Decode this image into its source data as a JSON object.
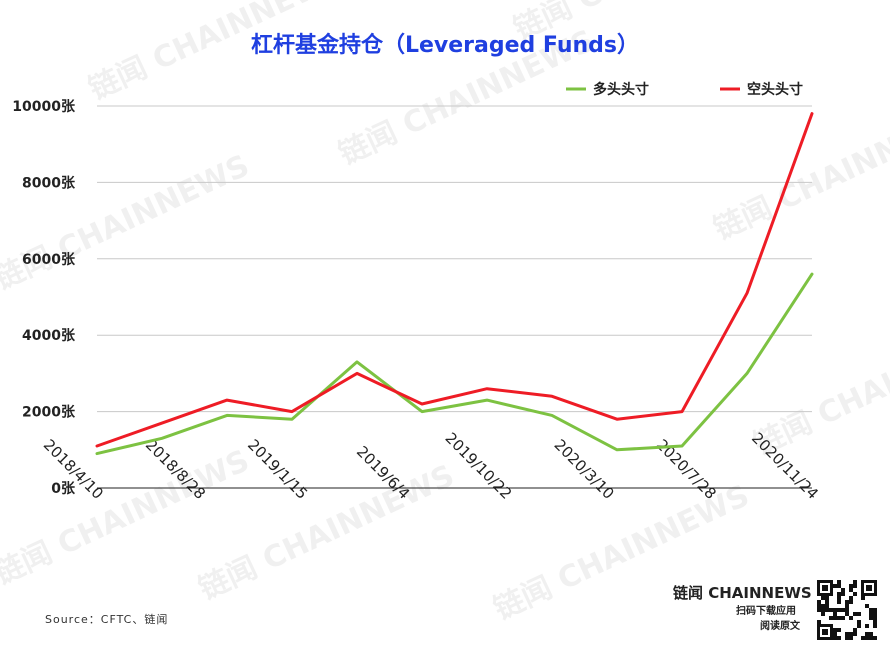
{
  "title": "杠杆基金持仓（Leveraged Funds）",
  "source": "Source：CFTC、链闻",
  "brand": {
    "name": "链闻 CHAINNEWS",
    "line1": "扫码下载应用",
    "line2": "阅读原文"
  },
  "watermark": "链闻 CHAINNEWS",
  "chart_data": {
    "type": "line",
    "title": "杠杆基金持仓（Leveraged Funds）",
    "xlabel": "",
    "ylabel": "",
    "ylim": [
      0,
      10000
    ],
    "y_ticks": [
      0,
      2000,
      4000,
      6000,
      8000,
      10000
    ],
    "y_tick_labels": [
      "0张",
      "2000张",
      "4000张",
      "6000张",
      "8000张",
      "10000张"
    ],
    "x_tick_labels": [
      "2018/4/10",
      "2018/8/28",
      "2019/1/15",
      "2019/6/4",
      "2019/10/22",
      "2020/3/10",
      "2020/7/28",
      "2020/11/24"
    ],
    "x": [
      "2018/4/10",
      "2018/6/19",
      "2018/8/28",
      "2018/11/6",
      "2019/1/15",
      "2019/3/26",
      "2019/6/4",
      "2019/8/13",
      "2019/10/22",
      "2019/12/31",
      "2020/3/10",
      "2020/5/19"
    ],
    "grid": true,
    "legend_position": "top-right",
    "series": [
      {
        "name": "多头头寸",
        "color": "#7dc242",
        "values": [
          900,
          1300,
          1900,
          1800,
          3300,
          2000,
          2300,
          1900,
          1000,
          1100,
          3000,
          5600
        ]
      },
      {
        "name": "空头头寸",
        "color": "#ee1c25",
        "values": [
          1100,
          1700,
          2300,
          2000,
          3000,
          2200,
          2600,
          2400,
          1800,
          2000,
          5100,
          9800
        ]
      }
    ]
  }
}
